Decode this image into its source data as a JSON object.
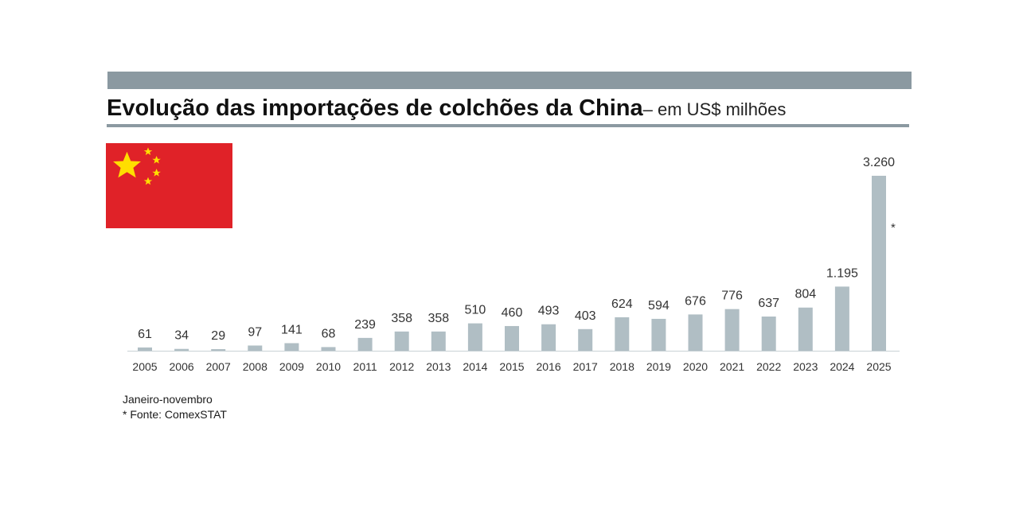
{
  "title": "Evolução das importações de colchões da China",
  "subtitle": "– em US$ milhões",
  "notes": {
    "line1": "Janeiro-novembro",
    "line2": "* Fonte: ComexSTAT"
  },
  "colors": {
    "bar": "#b0bec4",
    "band": "#8b99a1",
    "flag_red": "#e02228",
    "flag_yellow": "#ffde00"
  },
  "icons": {
    "flag": "china-flag-icon"
  },
  "chart_data": {
    "type": "bar",
    "categories": [
      "2005",
      "2006",
      "2007",
      "2008",
      "2009",
      "2010",
      "2011",
      "2012",
      "2013",
      "2014",
      "2015",
      "2016",
      "2017",
      "2018",
      "2019",
      "2020",
      "2021",
      "2022",
      "2023",
      "2024",
      "2025"
    ],
    "values": [
      61,
      34,
      29,
      97,
      141,
      68,
      239,
      358,
      358,
      510,
      460,
      493,
      403,
      624,
      594,
      676,
      776,
      637,
      804,
      1195,
      3260
    ],
    "value_labels": [
      "61",
      "34",
      "29",
      "97",
      "141",
      "68",
      "239",
      "358",
      "358",
      "510",
      "460",
      "493",
      "403",
      "624",
      "594",
      "676",
      "776",
      "637",
      "804",
      "1.195",
      "3.260"
    ],
    "annotations": [
      {
        "category": "2025",
        "text": "*"
      }
    ],
    "title": "Evolução das importações de colchões da China",
    "subtitle": "– em US$ milhões",
    "xlabel": "",
    "ylabel": "",
    "grid": false,
    "legend": "none"
  }
}
